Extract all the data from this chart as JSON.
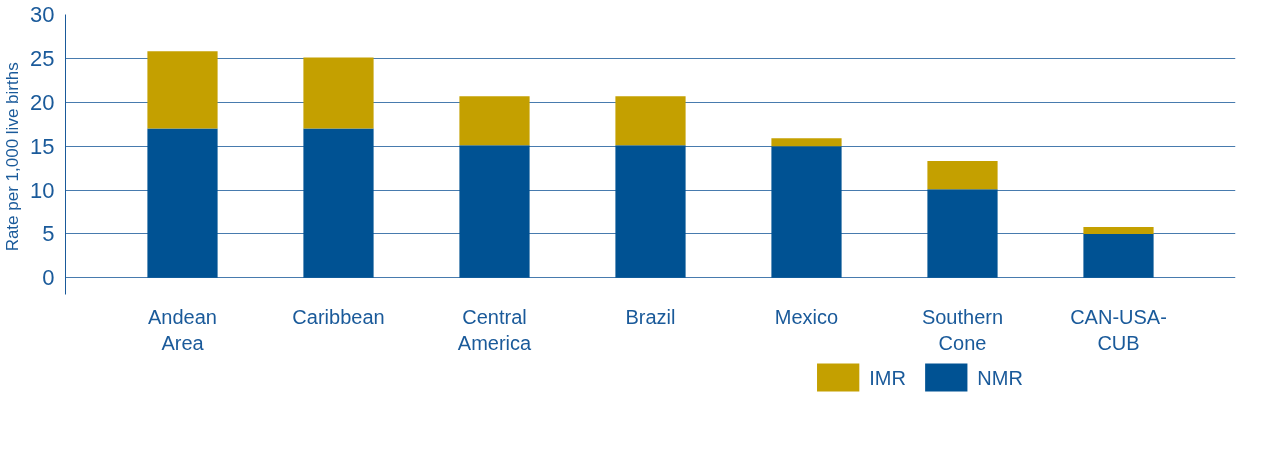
{
  "chart_data": {
    "type": "bar",
    "stacked": true,
    "ylabel": "Rate  per 1,000 live births",
    "categories": [
      "Andean\nArea",
      "Caribbean",
      "Central\nAmerica",
      "Brazil",
      "Mexico",
      "Southern\nCone",
      "CAN-USA-\nCUB"
    ],
    "series": [
      {
        "name": "NMR",
        "color": "#005293",
        "values": [
          17.0,
          17.0,
          15.1,
          15.1,
          15.0,
          10.1,
          5.0
        ]
      },
      {
        "name": "IMR",
        "color": "#c4a000",
        "values": [
          8.8,
          8.1,
          5.6,
          5.6,
          0.9,
          3.2,
          0.8
        ]
      }
    ],
    "ylim": [
      -1.9,
      30
    ],
    "yticks": [
      0,
      5,
      10,
      15,
      20,
      25,
      30
    ],
    "grid": "y",
    "legend": "bottom right"
  }
}
